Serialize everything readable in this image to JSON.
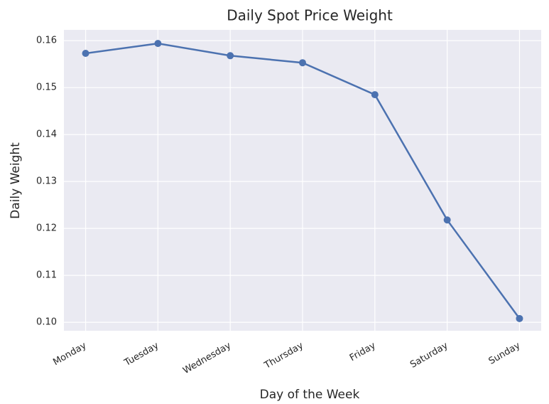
{
  "chart_data": {
    "type": "line",
    "title": "Daily Spot Price Weight",
    "x_label": "Day of the Week",
    "y_label": "Daily Weight",
    "categories": [
      "Monday",
      "Tuesday",
      "Wednesday",
      "Thursday",
      "Friday",
      "Saturday",
      "Sunday"
    ],
    "series": [
      {
        "color": "#4c72b0",
        "values": [
          0.1573,
          0.1594,
          0.1568,
          0.1553,
          0.1485,
          0.1218,
          0.1008
        ]
      }
    ],
    "ylim": [
      0.0982,
      0.1623
    ],
    "yticks": [
      {
        "value": 0.1,
        "label": "0.10"
      },
      0.11,
      0.12,
      0.13,
      0.14,
      0.15,
      0.16
    ],
    "grid": true
  }
}
